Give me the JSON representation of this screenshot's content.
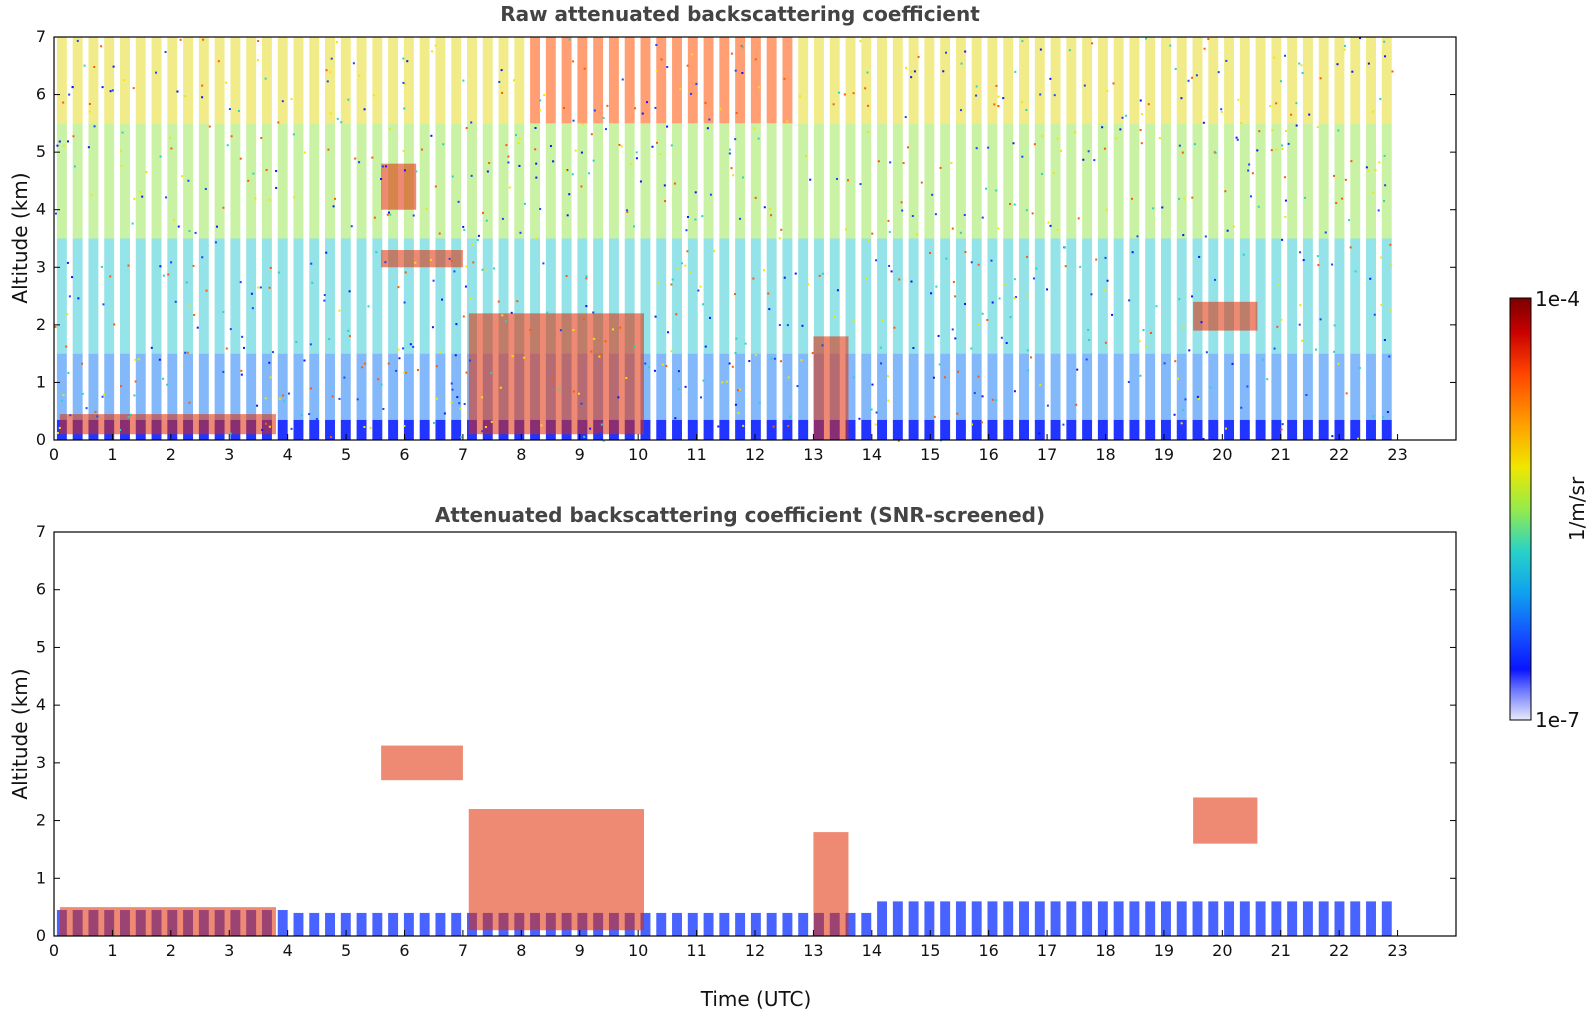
{
  "chart_data": [
    {
      "type": "heatmap",
      "title": "Raw attenuated backscattering coefficient",
      "xlabel": "",
      "ylabel": "Altitude (km)",
      "xlim": [
        0,
        24
      ],
      "ylim": [
        0,
        7
      ],
      "xticks": [
        "0",
        "1",
        "2",
        "3",
        "4",
        "5",
        "6",
        "7",
        "8",
        "9",
        "10",
        "11",
        "12",
        "13",
        "14",
        "15",
        "16",
        "17",
        "18",
        "19",
        "20",
        "21",
        "22",
        "23"
      ],
      "yticks": [
        "0",
        "1",
        "2",
        "3",
        "4",
        "5",
        "6",
        "7"
      ],
      "features": [
        {
          "name": "boundary layer top",
          "x": [
            0.1,
            3.8
          ],
          "y": [
            0.1,
            0.45
          ]
        },
        {
          "name": "cloud layer",
          "x": [
            5.6,
            7.0
          ],
          "y": [
            3.0,
            3.3
          ]
        },
        {
          "name": "cloud layer",
          "x": [
            5.6,
            6.2
          ],
          "y": [
            4.0,
            4.8
          ]
        },
        {
          "name": "cloud layer",
          "x": [
            7.1,
            10.1
          ],
          "y": [
            0.1,
            2.2
          ]
        },
        {
          "name": "cloud layer",
          "x": [
            13.0,
            13.6
          ],
          "y": [
            0.0,
            1.8
          ]
        },
        {
          "name": "cloud layer",
          "x": [
            19.5,
            20.6
          ],
          "y": [
            1.9,
            2.4
          ]
        }
      ]
    },
    {
      "type": "heatmap",
      "title": "Attenuated backscattering coefficient (SNR-screened)",
      "xlabel": "Time (UTC)",
      "ylabel": "Altitude (km)",
      "xlim": [
        0,
        24
      ],
      "ylim": [
        0,
        7
      ],
      "xticks": [
        "0",
        "1",
        "2",
        "3",
        "4",
        "5",
        "6",
        "7",
        "8",
        "9",
        "10",
        "11",
        "12",
        "13",
        "14",
        "15",
        "16",
        "17",
        "18",
        "19",
        "20",
        "21",
        "22",
        "23"
      ],
      "yticks": [
        "0",
        "1",
        "2",
        "3",
        "4",
        "5",
        "6",
        "7"
      ],
      "features": [
        {
          "name": "boundary layer",
          "x": [
            0.1,
            3.8
          ],
          "y": [
            0.0,
            0.5
          ]
        },
        {
          "name": "cloud layer",
          "x": [
            5.6,
            7.0
          ],
          "y": [
            2.7,
            3.3
          ]
        },
        {
          "name": "cloud layer",
          "x": [
            7.1,
            10.1
          ],
          "y": [
            0.1,
            2.2
          ]
        },
        {
          "name": "cloud layer",
          "x": [
            13.0,
            13.6
          ],
          "y": [
            0.0,
            1.8
          ]
        },
        {
          "name": "cloud layer",
          "x": [
            19.5,
            20.6
          ],
          "y": [
            1.6,
            2.4
          ]
        }
      ]
    }
  ],
  "colorbar": {
    "max_label": "1e-4",
    "min_label": "1e-7",
    "unit_label": "1/m/sr",
    "colors": [
      "#7a0000",
      "#b50000",
      "#e61e00",
      "#ff5a00",
      "#ff9600",
      "#ffcd00",
      "#f5f000",
      "#b4f032",
      "#6ee682",
      "#28d2c8",
      "#14b4f0",
      "#1e7ff5",
      "#1446ff",
      "#0a14ff",
      "#5a64ff",
      "#b4b9f5",
      "#e6e8f8"
    ]
  }
}
